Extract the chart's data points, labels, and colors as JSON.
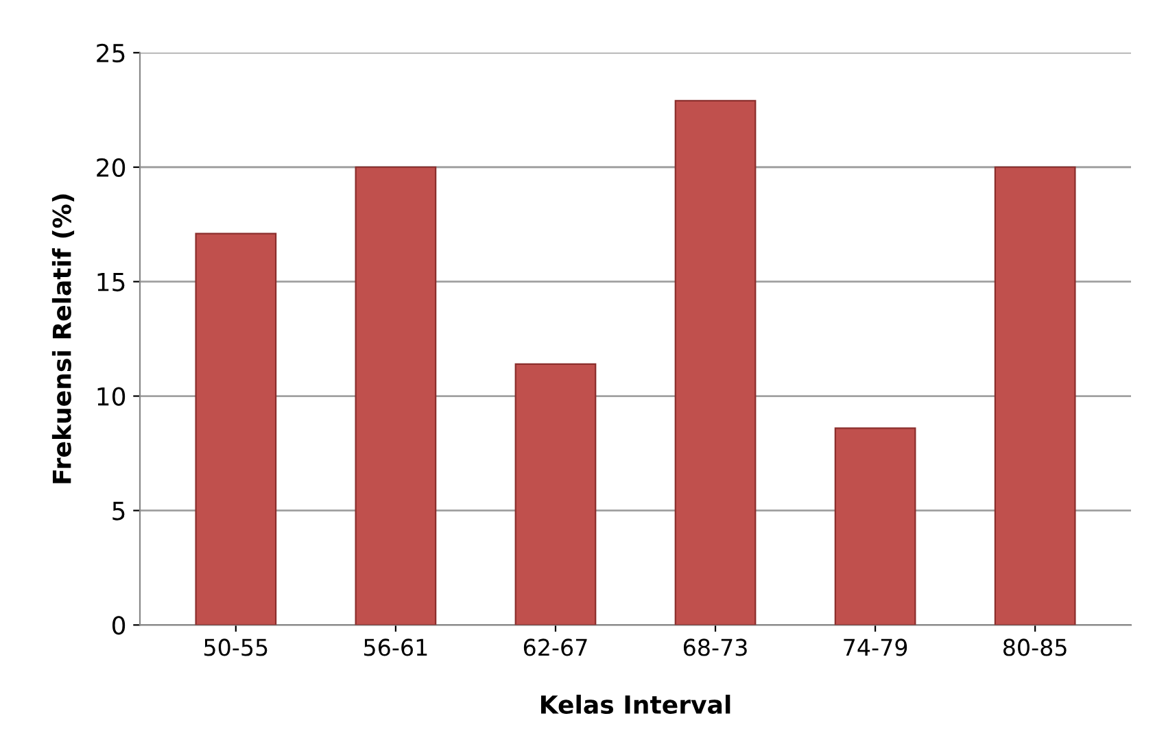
{
  "chart_data": {
    "type": "bar",
    "xlabel": "Kelas Interval",
    "ylabel": "Frekuensi Relatif (%)",
    "categories": [
      "50-55",
      "56-61",
      "62-67",
      "68-73",
      "74-79",
      "80-85"
    ],
    "values": [
      17.1,
      20,
      11.4,
      22.9,
      8.6,
      20
    ],
    "color": "#c0504d",
    "ylim": [
      0,
      25
    ],
    "yticks": [
      0,
      5,
      10,
      15,
      20,
      25
    ],
    "grid": "y",
    "legend": false
  }
}
